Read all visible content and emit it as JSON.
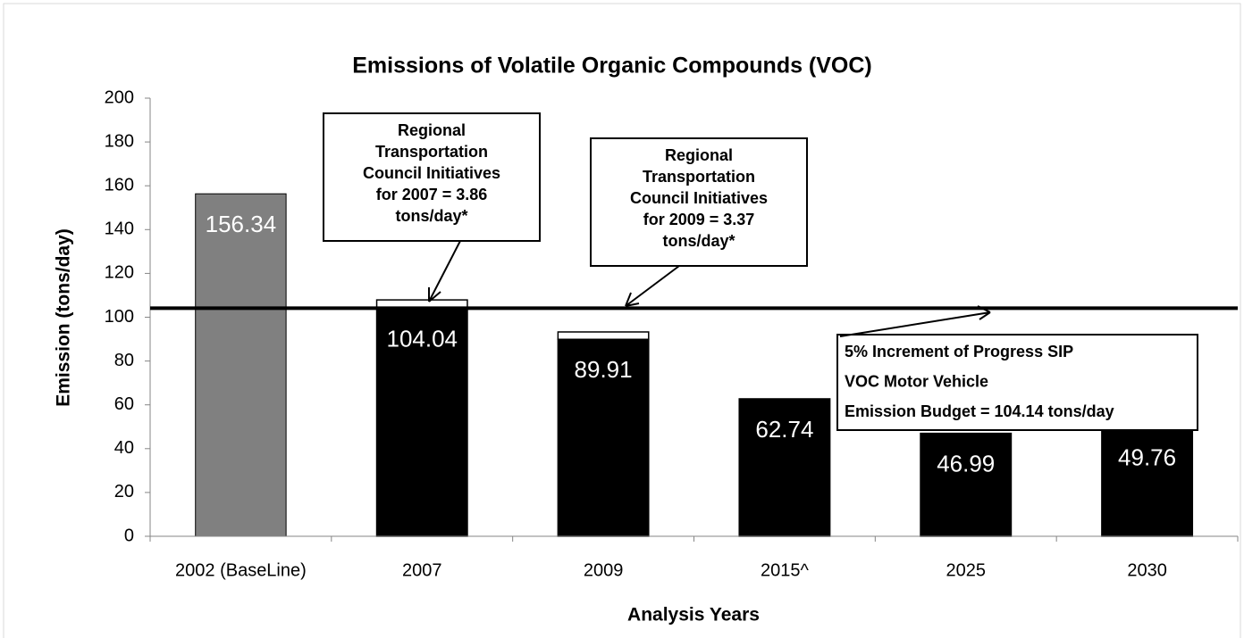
{
  "chart_data": {
    "type": "bar",
    "title": "Emissions of Volatile Organic Compounds (VOC)",
    "y_label": "Emission (tons/day)",
    "x_label": "Analysis Years",
    "categories": [
      "2002 (BaseLine)",
      "2007",
      "2009",
      "2015^",
      "2025",
      "2030"
    ],
    "series": [
      {
        "colors": [
          "#808080",
          "#000000",
          "#000000",
          "#000000",
          "#000000",
          "#000000"
        ],
        "values": [
          156.34,
          104.04,
          89.91,
          62.74,
          46.99,
          49.76
        ]
      },
      {
        "color": "#ffffff",
        "values": [
          null,
          3.86,
          3.37,
          null,
          null,
          null
        ]
      }
    ],
    "reference_line": {
      "value": 104.14,
      "color": "#000000"
    },
    "ylim": [
      0,
      200
    ],
    "yticks": [
      0,
      20,
      40,
      60,
      80,
      100,
      120,
      140,
      160,
      180,
      200
    ],
    "annotations": [
      {
        "lines": [
          "Regional",
          "Transportation",
          "Council  Initiatives",
          "for 2007 = 3.86",
          "tons/day*"
        ]
      },
      {
        "lines": [
          "Regional",
          "Transportation",
          "Council  Initiatives",
          "for 2009 = 3.37",
          "tons/day*"
        ]
      },
      {
        "lines": [
          "5% Increment of Progress SIP",
          "VOC Motor Vehicle",
          "Emission Budget  = 104.14 tons/day"
        ]
      }
    ]
  }
}
